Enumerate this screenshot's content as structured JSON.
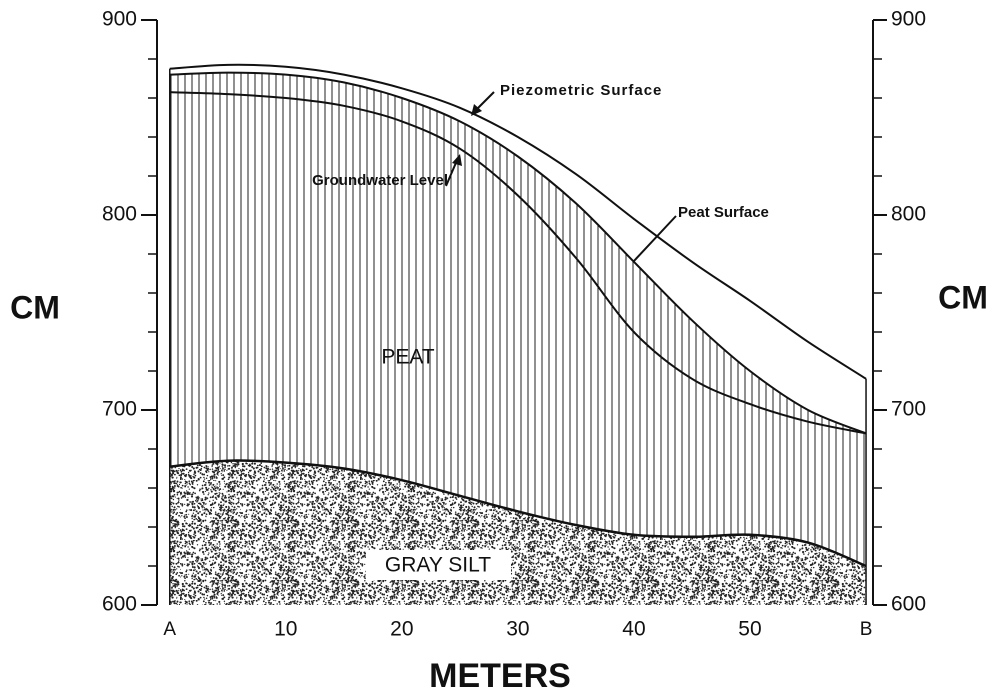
{
  "chart_data": {
    "type": "line",
    "x": [
      0,
      5,
      10,
      15,
      20,
      25,
      30,
      35,
      40,
      45,
      50,
      55,
      60
    ],
    "xlim": [
      -1.1,
      60.6
    ],
    "xticks": [
      {
        "value": 0,
        "label": "A"
      },
      10,
      20,
      30,
      40,
      50,
      {
        "value": 60,
        "label": "B"
      }
    ],
    "xlabel": "METERS",
    "ylim": [
      600,
      900
    ],
    "yticks": [
      600,
      700,
      800,
      900
    ],
    "yminor": [
      620,
      640,
      660,
      680,
      720,
      740,
      760,
      780,
      820,
      840,
      860,
      880
    ],
    "ylabel": "CM",
    "series": [
      {
        "name": "Piezometric Surface",
        "color": "#111111",
        "values": [
          875,
          877,
          876,
          872,
          865,
          855,
          840,
          821,
          798,
          776,
          756,
          735,
          716
        ]
      },
      {
        "name": "Peat Surface",
        "color": "#111111",
        "values": [
          872,
          873,
          872,
          868,
          860,
          848,
          830,
          806,
          776,
          746,
          720,
          700,
          688
        ]
      },
      {
        "name": "Groundwater Level",
        "color": "#111111",
        "values": [
          863,
          862,
          860,
          856,
          848,
          834,
          810,
          778,
          740,
          716,
          703,
          694,
          688
        ]
      }
    ],
    "silt_surface": [
      671,
      674,
      673,
      670,
      664,
      656,
      648,
      641,
      636,
      635,
      636,
      632,
      620
    ],
    "regions": {
      "peat": "PEAT",
      "silt": "GRAY SILT"
    }
  }
}
